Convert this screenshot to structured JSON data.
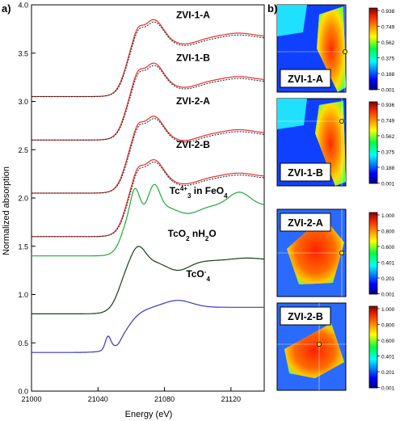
{
  "chart_data": [
    {
      "type": "line",
      "panel_label": "a)",
      "xlabel": "Energy (eV)",
      "ylabel": "Normalized absorption",
      "xlim": [
        21000,
        21140
      ],
      "ylim": [
        0.0,
        4.0
      ],
      "xticks": [
        21000,
        21040,
        21080,
        21120
      ],
      "yticks": [
        0.0,
        0.5,
        1.0,
        1.5,
        2.0,
        2.5,
        3.0,
        3.5,
        4.0
      ],
      "grid": false,
      "series": [
        {
          "name": "ZVI-1-A",
          "offset": 3.05,
          "fit_color": "#e53030",
          "line_color": "#222222",
          "label_pos": [
            21087,
            3.86
          ]
        },
        {
          "name": "ZVI-1-B",
          "offset": 2.6,
          "fit_color": "#e53030",
          "line_color": "#222222",
          "label_pos": [
            21087,
            3.42
          ]
        },
        {
          "name": "ZVI-2-A",
          "offset": 2.05,
          "fit_color": "#e53030",
          "line_color": "#222222",
          "label_pos": [
            21087,
            2.97
          ]
        },
        {
          "name": "ZVI-2-B",
          "offset": 1.6,
          "fit_color": "#e53030",
          "line_color": "#222222",
          "label_pos": [
            21087,
            2.52
          ]
        },
        {
          "name": "Tc4+ in Fe3O4",
          "offset": 1.4,
          "line_color": "#22a83c",
          "label_parts": {
            "a": "Tc",
            "sup": "4+",
            "b": " in Fe",
            "sub": "3",
            "c": "O",
            "sub2": "4"
          },
          "label_pos": [
            21083,
            2.04
          ]
        },
        {
          "name": "TcO2 nH2O",
          "offset": 0.8,
          "line_color": "#163f1c",
          "label_parts": {
            "a": "TcO",
            "sub": "2",
            "b": " nH",
            "sub2": "2",
            "c": "O"
          },
          "label_pos": [
            21082,
            1.6
          ]
        },
        {
          "name": "TcO4-",
          "offset": 0.4,
          "line_color": "#3838c0",
          "label_parts": {
            "a": "TcO",
            "sub": "4",
            "sup": "-"
          },
          "label_pos": [
            21093,
            1.18
          ]
        }
      ]
    },
    {
      "type": "heatmap",
      "panel_label": "b)",
      "maps": [
        {
          "name": "ZVI-1-A",
          "scale": [
            "0.938",
            "0.749",
            "0.562",
            "0.375",
            "0.188",
            "0.001"
          ]
        },
        {
          "name": "ZVI-1-B",
          "scale": [
            "0.936",
            "0.749",
            "0.562",
            "0.375",
            "0.188",
            "0.001"
          ]
        },
        {
          "name": "ZVI-2-A",
          "scale": [
            "1.000",
            "0.800",
            "0.600",
            "0.401",
            "0.201",
            "0.001"
          ]
        },
        {
          "name": "ZVI-2-B",
          "scale": [
            "1.000",
            "0.800",
            "0.600",
            "0.401",
            "0.201",
            "0.001"
          ]
        }
      ]
    }
  ]
}
